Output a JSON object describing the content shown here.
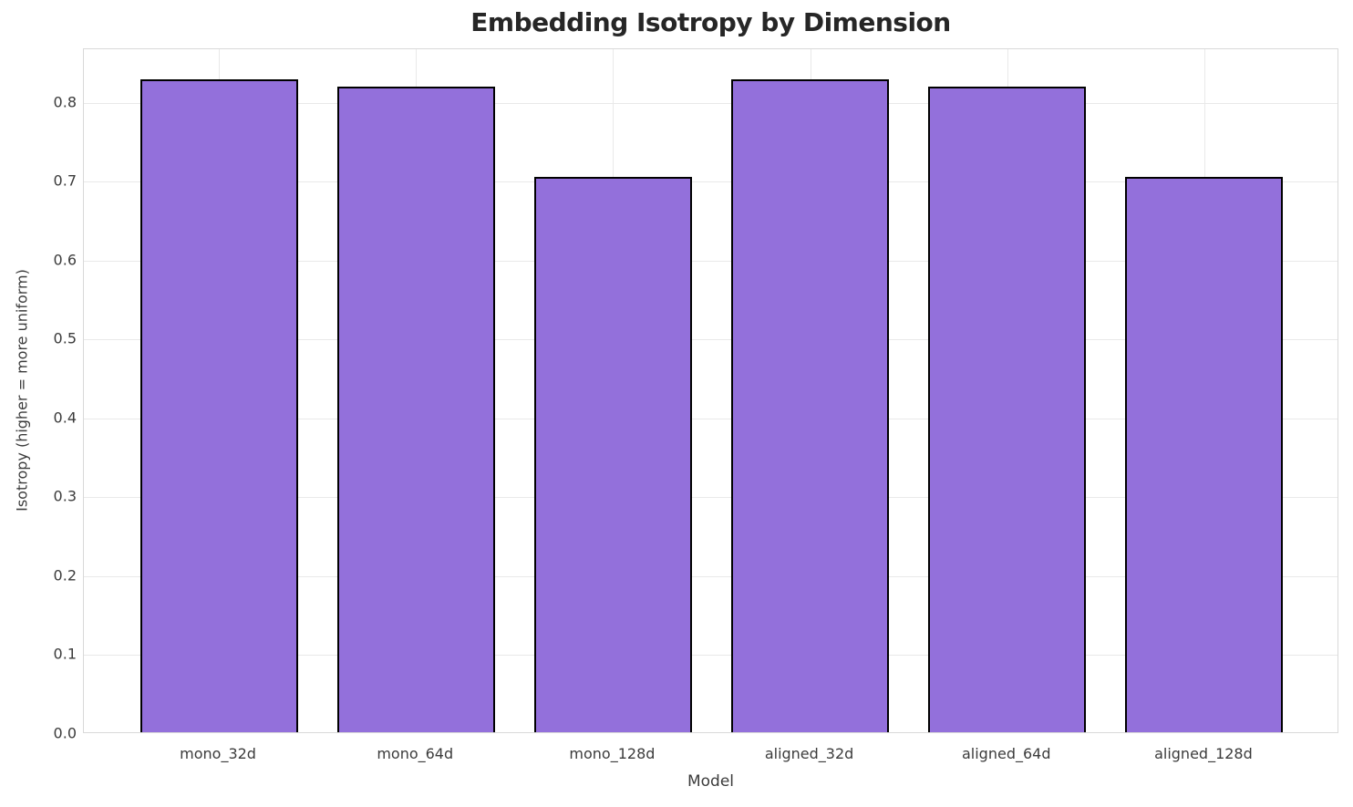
{
  "chart_data": {
    "type": "bar",
    "title": "Embedding Isotropy by Dimension",
    "xlabel": "Model",
    "ylabel": "Isotropy (higher = more uniform)",
    "categories": [
      "mono_32d",
      "mono_64d",
      "mono_128d",
      "aligned_32d",
      "aligned_64d",
      "aligned_128d"
    ],
    "values": [
      0.827,
      0.818,
      0.704,
      0.827,
      0.818,
      0.704
    ],
    "ylim": [
      0,
      0.868
    ],
    "ytick_labels": [
      "0.0",
      "0.1",
      "0.2",
      "0.3",
      "0.4",
      "0.5",
      "0.6",
      "0.7",
      "0.8"
    ],
    "yticks": [
      0.0,
      0.1,
      0.2,
      0.3,
      0.4,
      0.5,
      0.6,
      0.7,
      0.8
    ],
    "bar_color": "#9370DB",
    "bar_edge_color": "#000000",
    "grid": true,
    "grid_color": "#e9e9e9",
    "legend": "none",
    "bar_width_fraction": 0.8
  }
}
